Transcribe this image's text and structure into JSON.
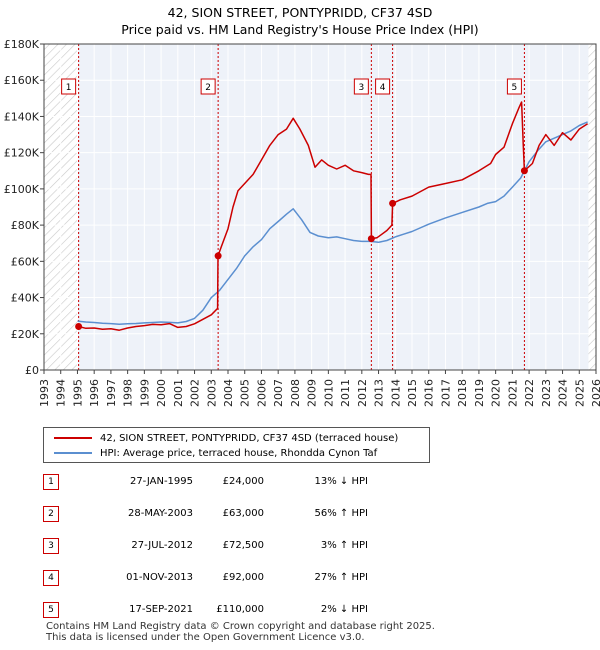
{
  "chart_data": {
    "type": "line",
    "title": "42, SION STREET, PONTYPRIDD, CF37 4SD",
    "subtitle": "Price paid vs. HM Land Registry's House Price Index (HPI)",
    "xlim": [
      1993,
      2026
    ],
    "ylim": [
      0,
      180000
    ],
    "y_ticks": [
      0,
      20000,
      40000,
      60000,
      80000,
      100000,
      120000,
      140000,
      160000,
      180000
    ],
    "y_tick_labels": [
      "£0",
      "£20K",
      "£40K",
      "£60K",
      "£80K",
      "£100K",
      "£120K",
      "£140K",
      "£160K",
      "£180K"
    ],
    "x_ticks": [
      1993,
      1994,
      1995,
      1996,
      1997,
      1998,
      1999,
      2000,
      2001,
      2002,
      2003,
      2004,
      2005,
      2006,
      2007,
      2008,
      2009,
      2010,
      2011,
      2012,
      2013,
      2014,
      2015,
      2016,
      2017,
      2018,
      2019,
      2020,
      2021,
      2022,
      2023,
      2024,
      2025,
      2026
    ],
    "x_tick_labels": [
      "1993",
      "1994",
      "1995",
      "1996",
      "1997",
      "1998",
      "1999",
      "2000",
      "2001",
      "2002",
      "2003",
      "2004",
      "2005",
      "2006",
      "2007",
      "2008",
      "2009",
      "2010",
      "2011",
      "2012",
      "2013",
      "2014",
      "2015",
      "2016",
      "2017",
      "2018",
      "2019",
      "2020",
      "2021",
      "2022",
      "2023",
      "2024",
      "2025",
      "2026"
    ],
    "data_start": 1995.0,
    "data_end": 2025.55,
    "series": [
      {
        "name": "42, SION STREET, PONTYPRIDD, CF37 4SD (terraced house)",
        "color": "#cc0000",
        "points": [
          [
            1995.07,
            24000
          ],
          [
            1995.5,
            23000
          ],
          [
            1996,
            23200
          ],
          [
            1996.5,
            22500
          ],
          [
            1997,
            22800
          ],
          [
            1997.5,
            22000
          ],
          [
            1998,
            23200
          ],
          [
            1998.5,
            24000
          ],
          [
            1999,
            24500
          ],
          [
            1999.5,
            25200
          ],
          [
            2000,
            25000
          ],
          [
            2000.5,
            25600
          ],
          [
            2001,
            23500
          ],
          [
            2001.5,
            24000
          ],
          [
            2002,
            25500
          ],
          [
            2002.5,
            28000
          ],
          [
            2003,
            30500
          ],
          [
            2003.38,
            34000
          ],
          [
            2003.4,
            63000
          ],
          [
            2003.6,
            68000
          ],
          [
            2004,
            78000
          ],
          [
            2004.3,
            90000
          ],
          [
            2004.6,
            99000
          ],
          [
            2005,
            103000
          ],
          [
            2005.5,
            108000
          ],
          [
            2006,
            116000
          ],
          [
            2006.5,
            124000
          ],
          [
            2007,
            130000
          ],
          [
            2007.5,
            133000
          ],
          [
            2007.9,
            139000
          ],
          [
            2008.3,
            133000
          ],
          [
            2008.8,
            124000
          ],
          [
            2009.2,
            112000
          ],
          [
            2009.6,
            116000
          ],
          [
            2010,
            113000
          ],
          [
            2010.5,
            111000
          ],
          [
            2011,
            113000
          ],
          [
            2011.5,
            110000
          ],
          [
            2012,
            109000
          ],
          [
            2012.4,
            108000
          ],
          [
            2012.55,
            108000
          ],
          [
            2012.57,
            72500
          ],
          [
            2012.9,
            73000
          ],
          [
            2013.2,
            75000
          ],
          [
            2013.5,
            77000
          ],
          [
            2013.8,
            80000
          ],
          [
            2013.84,
            92000
          ],
          [
            2014.3,
            94000
          ],
          [
            2015,
            96000
          ],
          [
            2016,
            101000
          ],
          [
            2017,
            103000
          ],
          [
            2018,
            105000
          ],
          [
            2019,
            110000
          ],
          [
            2019.7,
            114000
          ],
          [
            2020,
            119000
          ],
          [
            2020.5,
            123000
          ],
          [
            2021,
            136000
          ],
          [
            2021.4,
            145000
          ],
          [
            2021.55,
            148000
          ],
          [
            2021.65,
            125000
          ],
          [
            2021.72,
            110000
          ],
          [
            2022.2,
            114000
          ],
          [
            2022.6,
            124000
          ],
          [
            2023,
            130000
          ],
          [
            2023.5,
            124000
          ],
          [
            2024,
            131000
          ],
          [
            2024.5,
            127000
          ],
          [
            2025,
            133000
          ],
          [
            2025.5,
            136000
          ]
        ]
      },
      {
        "name": "HPI: Average price, terraced house, Rhondda Cynon Taf",
        "color": "#5b8fd0",
        "points": [
          [
            1995,
            27000
          ],
          [
            1995.5,
            26500
          ],
          [
            1996,
            26200
          ],
          [
            1996.5,
            25800
          ],
          [
            1997,
            25600
          ],
          [
            1997.5,
            25300
          ],
          [
            1998,
            25500
          ],
          [
            1998.5,
            25700
          ],
          [
            1999,
            26000
          ],
          [
            1999.5,
            26200
          ],
          [
            2000,
            26500
          ],
          [
            2000.5,
            26300
          ],
          [
            2001,
            26000
          ],
          [
            2001.5,
            26800
          ],
          [
            2002,
            28500
          ],
          [
            2002.5,
            33000
          ],
          [
            2003,
            40000
          ],
          [
            2003.5,
            44000
          ],
          [
            2004,
            50000
          ],
          [
            2004.5,
            56000
          ],
          [
            2005,
            63000
          ],
          [
            2005.5,
            68000
          ],
          [
            2006,
            72000
          ],
          [
            2006.5,
            78000
          ],
          [
            2007,
            82000
          ],
          [
            2007.5,
            86000
          ],
          [
            2007.9,
            89000
          ],
          [
            2008.4,
            83000
          ],
          [
            2008.9,
            76000
          ],
          [
            2009.4,
            74000
          ],
          [
            2010,
            73000
          ],
          [
            2010.5,
            73500
          ],
          [
            2011,
            72500
          ],
          [
            2011.5,
            71500
          ],
          [
            2012,
            71000
          ],
          [
            2012.5,
            71000
          ],
          [
            2013,
            70500
          ],
          [
            2013.5,
            71500
          ],
          [
            2014,
            73500
          ],
          [
            2014.5,
            75000
          ],
          [
            2015,
            76500
          ],
          [
            2016,
            80500
          ],
          [
            2017,
            84000
          ],
          [
            2018,
            87000
          ],
          [
            2019,
            90000
          ],
          [
            2019.5,
            92000
          ],
          [
            2020,
            93000
          ],
          [
            2020.5,
            96000
          ],
          [
            2021,
            101000
          ],
          [
            2021.5,
            106000
          ],
          [
            2022,
            115000
          ],
          [
            2022.5,
            121000
          ],
          [
            2023,
            126000
          ],
          [
            2023.5,
            128000
          ],
          [
            2024,
            130000
          ],
          [
            2024.5,
            132000
          ],
          [
            2025,
            135000
          ],
          [
            2025.5,
            137000
          ]
        ]
      }
    ],
    "transactions": [
      {
        "num": "1",
        "date": "27-JAN-1995",
        "price": "£24,000",
        "hpi": "13% ↓ HPI",
        "x": 1995.07,
        "y": 24000
      },
      {
        "num": "2",
        "date": "28-MAY-2003",
        "price": "£63,000",
        "hpi": "56% ↑ HPI",
        "x": 2003.41,
        "y": 63000
      },
      {
        "num": "3",
        "date": "27-JUL-2012",
        "price": "£72,500",
        "hpi": "3% ↑ HPI",
        "x": 2012.57,
        "y": 72500
      },
      {
        "num": "4",
        "date": "01-NOV-2013",
        "price": "£92,000",
        "hpi": "27% ↑ HPI",
        "x": 2013.84,
        "y": 92000
      },
      {
        "num": "5",
        "date": "17-SEP-2021",
        "price": "£110,000",
        "hpi": "2% ↓ HPI",
        "x": 2021.72,
        "y": 110000
      }
    ]
  },
  "legend": {
    "property_label": "42, SION STREET, PONTYPRIDD, CF37 4SD (terraced house)",
    "hpi_label": "HPI: Average price, terraced house, Rhondda Cynon Taf"
  },
  "footer": {
    "line1": "Contains HM Land Registry data © Crown copyright and database right 2025.",
    "line2": "This data is licensed under the Open Government Licence v3.0."
  }
}
